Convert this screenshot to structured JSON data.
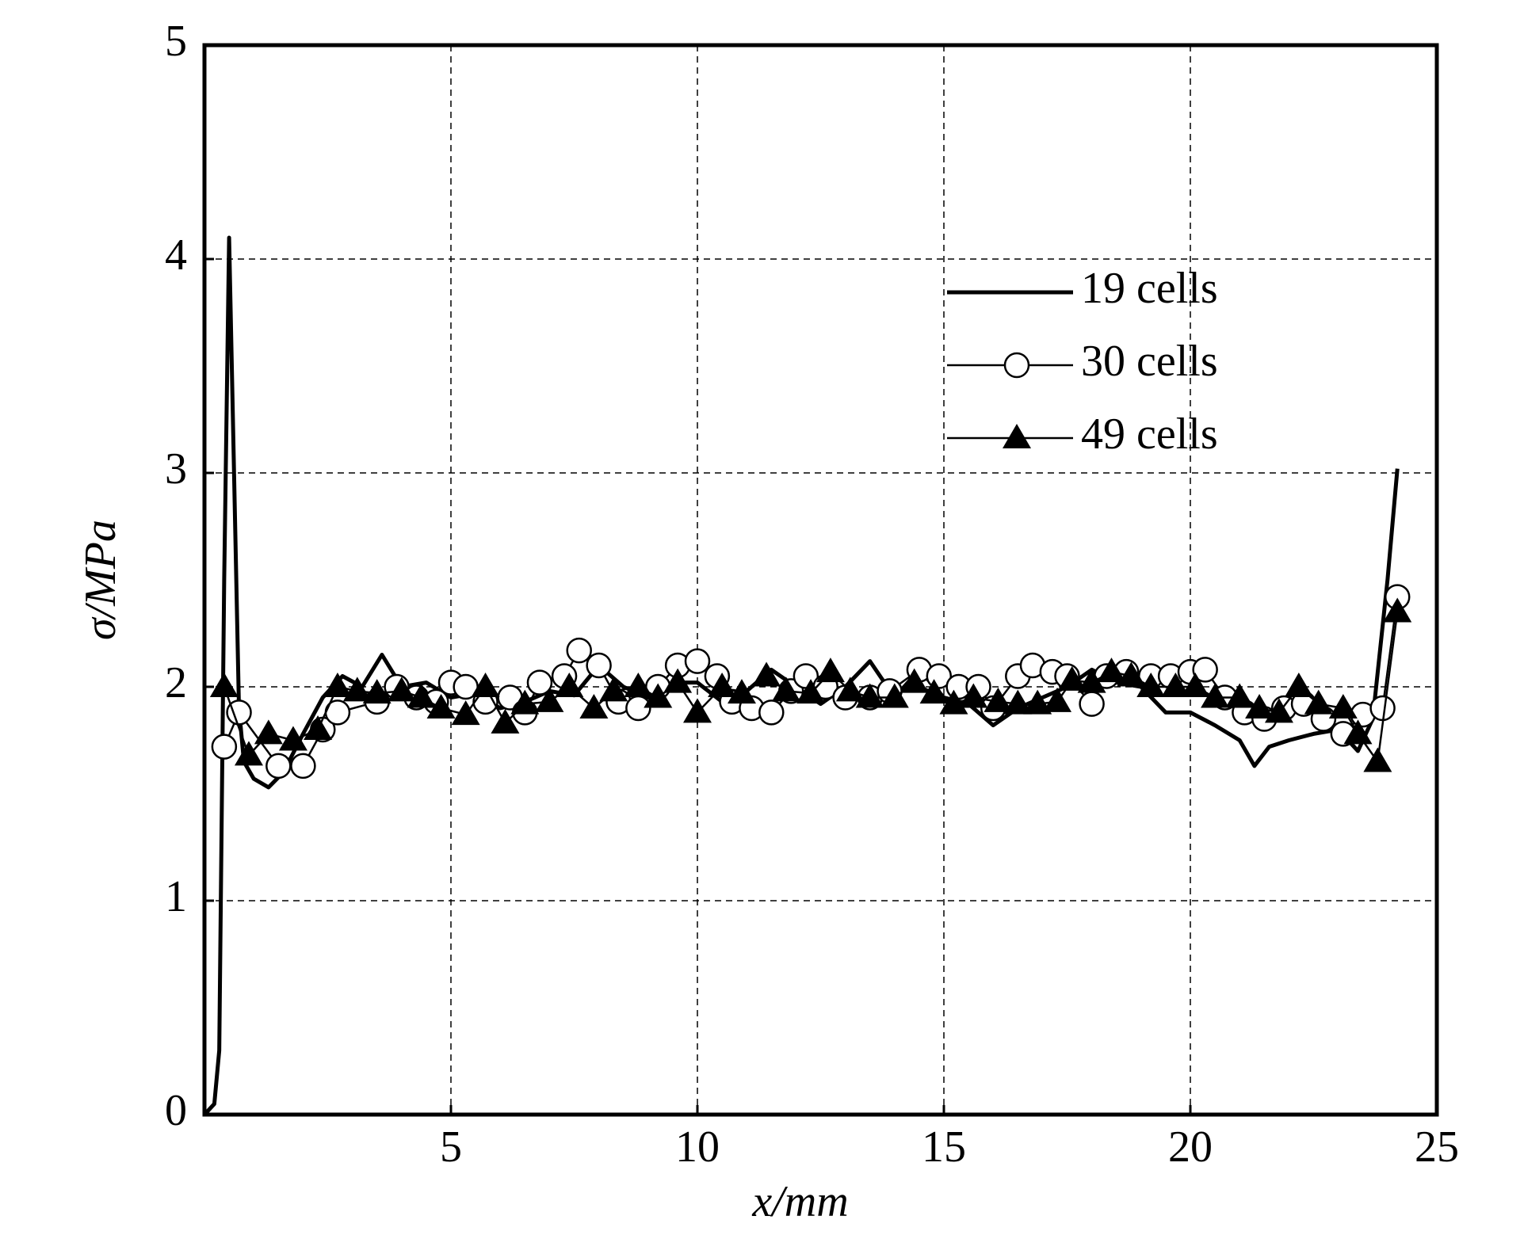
{
  "chart_data": {
    "type": "line",
    "xlabel": "x/mm",
    "ylabel": "σ/MPa",
    "xlim": [
      0,
      25
    ],
    "ylim": [
      0,
      5
    ],
    "xticks": [
      5,
      10,
      15,
      20,
      25
    ],
    "yticks": [
      0,
      1,
      2,
      3,
      4,
      5
    ],
    "grid": true,
    "legend": "upper right",
    "series": [
      {
        "name": "19 cells",
        "color": "#000000",
        "marker": "none",
        "linewidth": 5,
        "x": [
          0,
          0.2,
          0.3,
          0.4,
          0.5,
          0.6,
          0.7,
          0.8,
          1.0,
          1.3,
          1.6,
          2.0,
          2.4,
          2.8,
          3.2,
          3.6,
          4.0,
          4.5,
          5.0,
          5.5,
          6.0,
          6.5,
          7.0,
          7.5,
          8.0,
          8.5,
          9.0,
          9.5,
          10,
          10.5,
          11,
          11.5,
          12,
          12.5,
          13,
          13.5,
          14,
          14.5,
          15,
          15.5,
          16,
          16.5,
          17,
          17.5,
          18,
          18.5,
          19,
          19.5,
          20,
          20.5,
          21,
          21.3,
          21.6,
          22,
          22.5,
          23,
          23.4,
          23.7,
          24,
          24.2
        ],
        "values": [
          0,
          0.05,
          0.3,
          2.5,
          4.1,
          3.0,
          1.9,
          1.65,
          1.57,
          1.53,
          1.6,
          1.78,
          1.95,
          2.05,
          2.0,
          2.15,
          2.0,
          2.02,
          1.95,
          1.97,
          1.9,
          1.93,
          1.98,
          1.96,
          2.1,
          2.0,
          1.95,
          2.02,
          2.02,
          1.93,
          1.98,
          2.08,
          2.0,
          1.92,
          2.0,
          2.12,
          1.95,
          2.08,
          1.95,
          1.92,
          1.82,
          1.9,
          1.95,
          2.0,
          2.08,
          2.02,
          2.0,
          1.88,
          1.88,
          1.82,
          1.75,
          1.63,
          1.72,
          1.75,
          1.78,
          1.8,
          1.7,
          1.85,
          2.5,
          3.02
        ]
      },
      {
        "name": "30 cells",
        "color": "#000000",
        "marker": "circle",
        "linewidth": 2.5,
        "x": [
          0.4,
          0.7,
          1.5,
          2.0,
          2.4,
          2.7,
          3.5,
          3.9,
          4.3,
          4.7,
          5.0,
          5.3,
          5.7,
          6.2,
          6.5,
          6.8,
          7.3,
          7.6,
          8.0,
          8.4,
          8.8,
          9.2,
          9.6,
          10.0,
          10.4,
          10.7,
          11.1,
          11.5,
          11.9,
          12.2,
          12.6,
          13.0,
          13.5,
          13.9,
          14.5,
          14.9,
          15.3,
          15.7,
          16.0,
          16.5,
          16.8,
          17.2,
          17.5,
          18.0,
          18.3,
          18.7,
          19.2,
          19.6,
          20.0,
          20.3,
          20.7,
          21.1,
          21.5,
          21.9,
          22.3,
          22.7,
          23.1,
          23.5,
          23.9,
          24.2
        ],
        "values": [
          1.72,
          1.88,
          1.63,
          1.63,
          1.8,
          1.88,
          1.93,
          2.0,
          1.95,
          1.93,
          2.02,
          2.0,
          1.93,
          1.95,
          1.88,
          2.02,
          2.05,
          2.17,
          2.1,
          1.93,
          1.9,
          2.0,
          2.1,
          2.12,
          2.05,
          1.93,
          1.9,
          1.88,
          1.98,
          2.05,
          2.0,
          1.95,
          1.95,
          1.98,
          2.08,
          2.05,
          2.0,
          2.0,
          1.9,
          2.05,
          2.1,
          2.07,
          2.05,
          1.92,
          2.05,
          2.07,
          2.05,
          2.05,
          2.07,
          2.08,
          1.95,
          1.88,
          1.85,
          1.9,
          1.92,
          1.85,
          1.78,
          1.87,
          1.9,
          2.42
        ]
      },
      {
        "name": "49 cells",
        "color": "#000000",
        "marker": "triangle",
        "linewidth": 2.5,
        "x": [
          0.4,
          0.9,
          1.3,
          1.8,
          2.3,
          2.7,
          3.1,
          3.5,
          4.0,
          4.4,
          4.8,
          5.3,
          5.7,
          6.1,
          6.5,
          7.0,
          7.4,
          7.9,
          8.3,
          8.8,
          9.2,
          9.6,
          10.0,
          10.5,
          10.9,
          11.4,
          11.8,
          12.3,
          12.7,
          13.1,
          13.5,
          14.0,
          14.4,
          14.8,
          15.2,
          15.6,
          16.1,
          16.5,
          16.9,
          17.3,
          17.6,
          18.0,
          18.4,
          18.8,
          19.2,
          19.7,
          20.1,
          20.5,
          21.0,
          21.4,
          21.8,
          22.2,
          22.6,
          23.1,
          23.4,
          23.8,
          24.2
        ],
        "values": [
          2.0,
          1.68,
          1.78,
          1.75,
          1.8,
          2.0,
          1.98,
          1.97,
          1.98,
          1.95,
          1.9,
          1.87,
          2.0,
          1.83,
          1.92,
          1.93,
          2.0,
          1.9,
          1.98,
          2.0,
          1.95,
          2.02,
          1.88,
          2.0,
          1.97,
          2.05,
          1.98,
          1.97,
          2.07,
          1.98,
          1.95,
          1.95,
          2.02,
          1.97,
          1.92,
          1.95,
          1.93,
          1.92,
          1.92,
          1.93,
          2.03,
          2.02,
          2.07,
          2.05,
          2.0,
          2.0,
          2.0,
          1.95,
          1.95,
          1.9,
          1.88,
          2.0,
          1.92,
          1.9,
          1.78,
          1.65,
          2.35
        ]
      }
    ]
  }
}
